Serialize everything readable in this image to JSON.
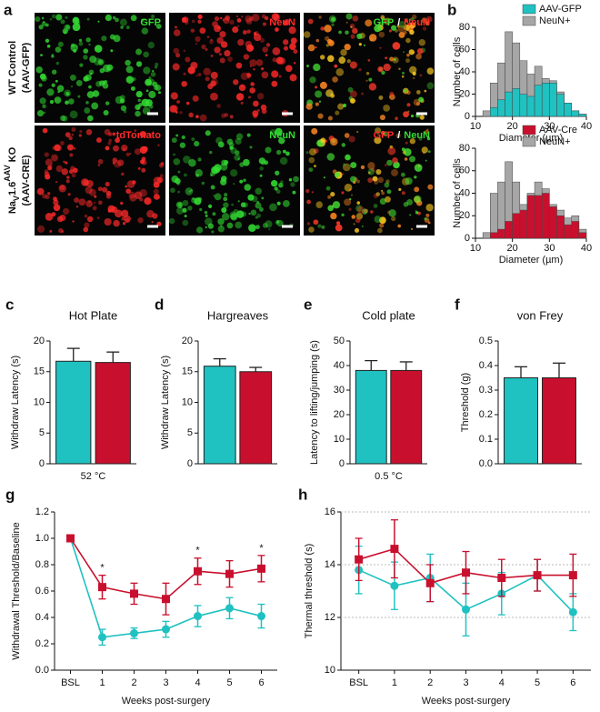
{
  "figure_a": {
    "panel": "a",
    "rows": [
      {
        "label_parts": [
          {
            "text": "WT Control"
          }
        ],
        "sublabel": "(AAV-GFP)",
        "images": [
          {
            "channels": [
              {
                "text": "GFP",
                "color": "#33dd33"
              }
            ]
          },
          {
            "channels": [
              {
                "text": "NeuN",
                "color": "#ff2a2a"
              }
            ]
          },
          {
            "channels": [
              {
                "text": "GFP",
                "color": "#33dd33"
              },
              {
                "text": "/",
                "color": "#ffffff"
              },
              {
                "text": "NeuN",
                "color": "#ff2a2a"
              }
            ]
          }
        ]
      },
      {
        "label_parts": [
          {
            "text": "Na"
          },
          {
            "text": "V",
            "shift": "sub"
          },
          {
            "text": "1.6"
          },
          {
            "text": "AAV",
            "shift": "super"
          },
          {
            "text": " KO"
          }
        ],
        "sublabel": "(AAV-CRE)",
        "images": [
          {
            "channels": [
              {
                "text": "tdTomato",
                "color": "#ff2a2a"
              }
            ]
          },
          {
            "channels": [
              {
                "text": "NeuN",
                "color": "#33dd33"
              }
            ]
          },
          {
            "channels": [
              {
                "text": "GFP",
                "color": "#ff2a2a"
              },
              {
                "text": "/",
                "color": "#ffffff"
              },
              {
                "text": "NeuN",
                "color": "#33dd33"
              }
            ]
          }
        ]
      }
    ]
  },
  "chart_data": [
    {
      "type": "histogram",
      "panel": "b",
      "y_label": "Number of cells",
      "x_label": "Diameter (µm)",
      "bins": [
        12,
        14,
        16,
        18,
        20,
        22,
        24,
        26,
        28,
        30,
        32,
        34,
        36,
        38,
        40
      ],
      "series": [
        {
          "name": "AAV-GFP",
          "color": "#20c1c1",
          "values": [
            0,
            8,
            15,
            22,
            25,
            20,
            18,
            28,
            30,
            30,
            20,
            12,
            5,
            2
          ]
        },
        {
          "name": "NeuN+",
          "color": "#a6a6a6",
          "values": [
            5,
            30,
            48,
            76,
            66,
            50,
            38,
            45,
            34,
            32,
            22,
            12,
            5,
            2
          ]
        }
      ],
      "xlim": [
        10,
        40
      ],
      "xticks": [
        10,
        20,
        30,
        40
      ],
      "ylim": [
        0,
        80
      ],
      "yticks": [
        0,
        20,
        40,
        60,
        80
      ]
    },
    {
      "type": "histogram",
      "y_label": "Number of cells",
      "x_label": "Diameter (µm)",
      "bins": [
        12,
        14,
        16,
        18,
        20,
        22,
        24,
        26,
        28,
        30,
        32,
        34,
        36,
        38,
        40
      ],
      "series": [
        {
          "name": "AAV-Cre",
          "color": "#c8102e",
          "values": [
            0,
            5,
            8,
            15,
            22,
            25,
            38,
            38,
            40,
            28,
            20,
            12,
            15,
            5
          ]
        },
        {
          "name": "NeuN+",
          "color": "#a6a6a6",
          "values": [
            5,
            40,
            50,
            68,
            50,
            30,
            40,
            50,
            44,
            30,
            25,
            18,
            20,
            8
          ]
        }
      ],
      "xlim": [
        10,
        40
      ],
      "xticks": [
        10,
        20,
        30,
        40
      ],
      "ylim": [
        0,
        80
      ],
      "yticks": [
        0,
        20,
        40,
        60,
        80
      ]
    },
    {
      "type": "bar",
      "panel": "c",
      "title": "Hot Plate",
      "y_label": "Withdraw Latency (s)",
      "x_label": "52 °C",
      "values": [
        16.7,
        16.5
      ],
      "errors": [
        2.1,
        1.7
      ],
      "colors": [
        "#20c1c1",
        "#c8102e"
      ],
      "ylim": [
        0,
        20
      ],
      "yticks": [
        0,
        5,
        10,
        15,
        20
      ]
    },
    {
      "type": "bar",
      "panel": "d",
      "title": "Hargreaves",
      "y_label": "Withdraw Latency (s)",
      "values": [
        15.9,
        15.0
      ],
      "errors": [
        1.2,
        0.7
      ],
      "colors": [
        "#20c1c1",
        "#c8102e"
      ],
      "ylim": [
        0,
        20
      ],
      "yticks": [
        0,
        5,
        10,
        15,
        20
      ]
    },
    {
      "type": "bar",
      "panel": "e",
      "title": "Cold plate",
      "y_label": "Latency to lifting/jumping (s)",
      "x_label": "0.5 °C",
      "values": [
        38,
        38
      ],
      "errors": [
        4,
        3.5
      ],
      "colors": [
        "#20c1c1",
        "#c8102e"
      ],
      "ylim": [
        0,
        50
      ],
      "yticks": [
        0,
        10,
        20,
        30,
        40,
        50
      ]
    },
    {
      "type": "bar",
      "panel": "f",
      "title": "von Frey",
      "y_label": "Threshold (g)",
      "values": [
        0.35,
        0.35
      ],
      "errors": [
        0.045,
        0.06
      ],
      "colors": [
        "#20c1c1",
        "#c8102e"
      ],
      "ylim": [
        0,
        0.5
      ],
      "yticks": [
        {
          "value": 0,
          "label": "0.0"
        },
        0.1,
        0.2,
        0.3,
        0.4,
        0.5
      ]
    },
    {
      "type": "line",
      "panel": "g",
      "y_label": "Withdrawal Threshold/Baseline",
      "x_label": "Weeks post-surgery",
      "categories": [
        "BSL",
        "1",
        "2",
        "3",
        "4",
        "5",
        "6"
      ],
      "series": [
        {
          "color": "#20c1c1",
          "marker": "circle",
          "values": [
            1.0,
            0.25,
            0.28,
            0.31,
            0.41,
            0.47,
            0.41
          ],
          "errors": [
            0,
            0.06,
            0.04,
            0.06,
            0.08,
            0.08,
            0.09
          ]
        },
        {
          "color": "#c8102e",
          "marker": "square",
          "values": [
            1.0,
            0.63,
            0.58,
            0.54,
            0.75,
            0.73,
            0.77
          ],
          "errors": [
            0,
            0.09,
            0.08,
            0.12,
            0.1,
            0.1,
            0.1
          ],
          "significance": [
            null,
            "*",
            null,
            null,
            "*",
            null,
            "*"
          ]
        }
      ],
      "ylim": [
        0,
        1.2
      ],
      "yticks": [
        {
          "value": 0,
          "label": "0.0"
        },
        0.2,
        0.4,
        0.6,
        0.8,
        {
          "value": 1,
          "label": "1.0"
        },
        1.2
      ]
    },
    {
      "type": "line",
      "panel": "h",
      "y_label": "Thermal threshold (s)",
      "x_label": "Weeks post-surgery",
      "grid": true,
      "categories": [
        "BSL",
        "1",
        "2",
        "3",
        "4",
        "5",
        "6"
      ],
      "series": [
        {
          "color": "#20c1c1",
          "marker": "circle",
          "values": [
            13.8,
            13.2,
            13.5,
            12.3,
            12.9,
            13.6,
            12.2
          ],
          "errors": [
            0.9,
            0.9,
            0.9,
            1.0,
            0.8,
            0.6,
            0.7
          ]
        },
        {
          "color": "#c8102e",
          "marker": "square",
          "values": [
            14.2,
            14.6,
            13.3,
            13.7,
            13.5,
            13.6,
            13.6
          ],
          "errors": [
            0.8,
            1.1,
            0.7,
            0.8,
            0.7,
            0.6,
            0.8
          ]
        }
      ],
      "ylim": [
        10,
        16
      ],
      "yticks": [
        10,
        12,
        14,
        16
      ]
    }
  ]
}
